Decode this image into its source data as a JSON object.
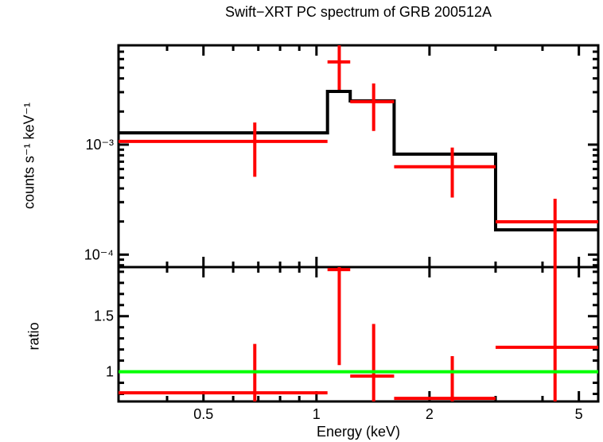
{
  "title": "Swift−XRT PC spectrum of GRB 200512A",
  "chart_data": {
    "type": "line",
    "description": "X-ray spectrum with stepped model fit (top, log-log) and data/model ratio (bottom, log-linear)",
    "xlabel": "Energy (keV)",
    "xscale": "log",
    "xlim": [
      0.297,
      5.63
    ],
    "x_major_ticks": [
      {
        "value": 0.5,
        "label": "0.5"
      },
      {
        "value": 1,
        "label": "1"
      },
      {
        "value": 2,
        "label": "2"
      },
      {
        "value": 5,
        "label": "5"
      }
    ],
    "x_minor_ticks": [
      0.4,
      0.6,
      0.7,
      0.8,
      0.9,
      3,
      4
    ],
    "colors": {
      "data": "#ff0000",
      "model": "#000000",
      "reference": "#00ff00",
      "frame": "#000000",
      "background": "#ffffff"
    },
    "panels": [
      {
        "id": "spectrum",
        "ylabel": "counts s⁻¹ keV⁻¹",
        "yscale": "log",
        "ylim": [
          7.7e-05,
          0.008
        ],
        "y_major_ticks": [
          {
            "value": 0.001,
            "label": "10⁻³"
          },
          {
            "value": 0.0001,
            "label": "10⁻⁴"
          }
        ],
        "y_minor_ticks": [
          8e-05,
          9e-05,
          0.0002,
          0.0003,
          0.0004,
          0.0005,
          0.0006,
          0.0007,
          0.0008,
          0.0009,
          0.002,
          0.003,
          0.004,
          0.005,
          0.006,
          0.007
        ],
        "model_steps": [
          {
            "e_lo": 0.297,
            "e_hi": 1.07,
            "value": 0.00128
          },
          {
            "e_lo": 1.07,
            "e_hi": 1.23,
            "value": 0.00305
          },
          {
            "e_lo": 1.23,
            "e_hi": 1.61,
            "value": 0.0025
          },
          {
            "e_lo": 1.61,
            "e_hi": 3.0,
            "value": 0.00082
          },
          {
            "e_lo": 3.0,
            "e_hi": 5.63,
            "value": 0.000168
          }
        ],
        "points": [
          {
            "x": 0.685,
            "x_lo": 0.297,
            "x_hi": 1.07,
            "y": 0.00107,
            "y_lo": 0.00051,
            "y_hi": 0.00159
          },
          {
            "x": 1.15,
            "x_lo": 1.07,
            "x_hi": 1.23,
            "y": 0.00565,
            "y_lo": 0.00315,
            "y_hi": 0.008
          },
          {
            "x": 1.42,
            "x_lo": 1.23,
            "x_hi": 1.61,
            "y": 0.00246,
            "y_lo": 0.00133,
            "y_hi": 0.0036
          },
          {
            "x": 2.3,
            "x_lo": 1.61,
            "x_hi": 3.0,
            "y": 0.00063,
            "y_lo": 0.00033,
            "y_hi": 0.00094
          },
          {
            "x": 4.32,
            "x_lo": 3.0,
            "x_hi": 5.63,
            "y": 0.000199,
            "y_lo": 7.7e-05,
            "y_hi": 0.000322
          }
        ]
      },
      {
        "id": "ratio",
        "ylabel": "ratio",
        "yscale": "linear",
        "ylim": [
          0.732,
          1.942
        ],
        "y_major_ticks": [
          {
            "value": 1,
            "label": "1"
          },
          {
            "value": 1.5,
            "label": "1.5"
          }
        ],
        "y_minor_ticks": [
          0.8,
          0.9,
          1.1,
          1.2,
          1.3,
          1.4,
          1.6,
          1.7,
          1.8,
          1.9
        ],
        "reference_line": {
          "value": 1.0
        },
        "points": [
          {
            "x": 0.685,
            "x_lo": 0.297,
            "x_hi": 1.07,
            "y": 0.81,
            "y_lo": 0.732,
            "y_hi": 1.25
          },
          {
            "x": 1.15,
            "x_lo": 1.07,
            "x_hi": 1.23,
            "y": 1.92,
            "y_lo": 1.06,
            "y_hi": 1.942
          },
          {
            "x": 1.42,
            "x_lo": 1.23,
            "x_hi": 1.61,
            "y": 0.96,
            "y_lo": 0.732,
            "y_hi": 1.43
          },
          {
            "x": 2.3,
            "x_lo": 1.61,
            "x_hi": 3.0,
            "y": 0.76,
            "y_lo": 0.732,
            "y_hi": 1.14
          },
          {
            "x": 4.32,
            "x_lo": 3.0,
            "x_hi": 5.63,
            "y": 1.22,
            "y_lo": 0.732,
            "y_hi": 1.942
          }
        ]
      }
    ]
  }
}
